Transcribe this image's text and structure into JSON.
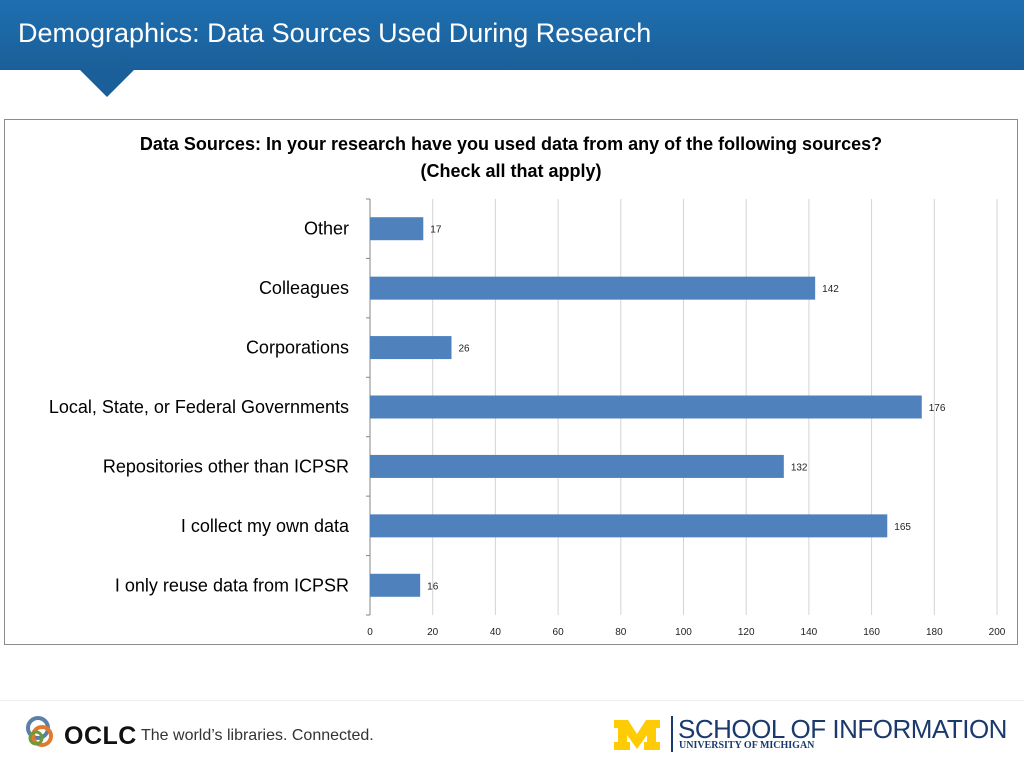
{
  "header": {
    "title": "Demographics: Data Sources Used During Research"
  },
  "chart_data": {
    "type": "bar",
    "orientation": "horizontal",
    "title": "Data Sources: In your research have you used data from any of the following sources?",
    "subtitle": "(Check all that apply)",
    "categories": [
      "Other",
      "Colleagues",
      "Corporations",
      "Local, State, or Federal Governments",
      "Repositories other than ICPSR",
      "I collect my own data",
      "I only reuse data from ICPSR"
    ],
    "values": [
      17,
      142,
      26,
      176,
      132,
      165,
      16
    ],
    "xlim": [
      0,
      200
    ],
    "xticks": [
      0,
      20,
      40,
      60,
      80,
      100,
      120,
      140,
      160,
      180,
      200
    ],
    "grid": true,
    "bar_color": "#4f81bd",
    "data_labels": true
  },
  "footer": {
    "oclc_name": "OCLC",
    "tagline": "The world’s libraries. Connected.",
    "school_name": "SCHOOL OF INFORMATION",
    "university": "UNIVERSITY OF MICHIGAN"
  }
}
